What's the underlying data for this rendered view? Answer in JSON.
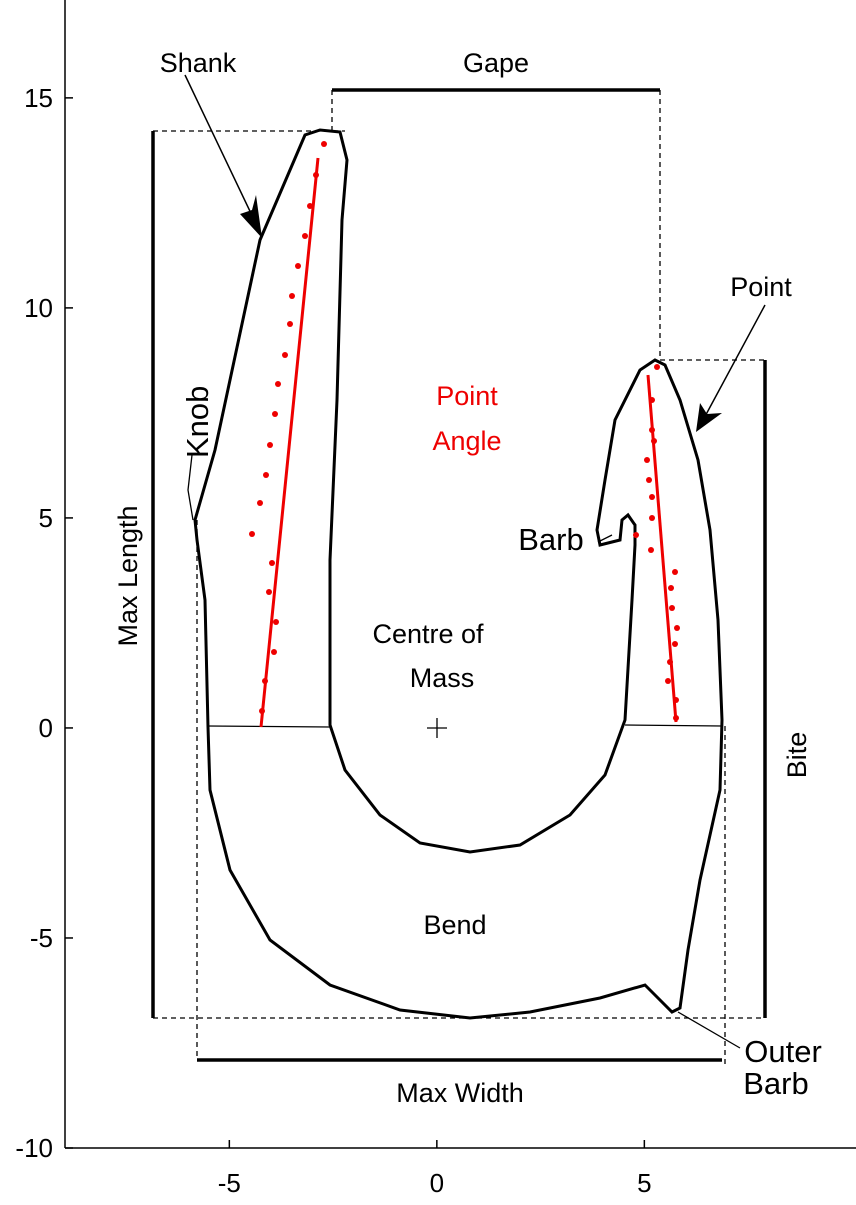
{
  "axes": {
    "xlim": [
      -8.96,
      10.1
    ],
    "ylim": [
      -10,
      17.33
    ],
    "xticks": [
      -5,
      0,
      5
    ],
    "yticks": [
      -10,
      -5,
      0,
      5,
      10,
      15
    ]
  },
  "labels": {
    "shank": "Shank",
    "gape": "Gape",
    "point": "Point",
    "knob": "Knob",
    "point_angle": [
      "Point",
      "Angle"
    ],
    "barb": "Barb",
    "centre_of_mass": [
      "Centre of",
      "Mass"
    ],
    "max_length": "Max Length",
    "bite": "Bite",
    "bend": "Bend",
    "max_width": "Max Width",
    "outer_barb": [
      "Outer",
      "Barb"
    ]
  }
}
